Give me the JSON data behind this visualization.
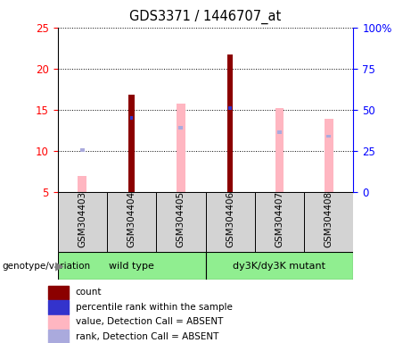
{
  "title": "GDS3371 / 1446707_at",
  "samples": [
    "GSM304403",
    "GSM304404",
    "GSM304405",
    "GSM304406",
    "GSM304407",
    "GSM304408"
  ],
  "count_values": [
    0,
    16.8,
    0,
    21.7,
    0,
    0
  ],
  "percentile_rank_values": [
    0,
    14.0,
    0,
    15.2,
    0,
    0
  ],
  "value_absent": [
    7.0,
    0,
    15.8,
    0,
    15.2,
    13.9
  ],
  "rank_absent": [
    10.1,
    0,
    12.8,
    0,
    12.3,
    11.8
  ],
  "ylim_left": [
    5,
    25
  ],
  "yticks_left": [
    5,
    10,
    15,
    20,
    25
  ],
  "yticks_right": [
    0,
    25,
    50,
    75,
    100
  ],
  "ytick_labels_right": [
    "0",
    "25",
    "50",
    "75",
    "100%"
  ],
  "color_count": "#8B0000",
  "color_rank": "#3333CC",
  "color_value_absent": "#FFB6C1",
  "color_rank_absent": "#AAAADD",
  "groups": [
    {
      "label": "wild type",
      "start": 0,
      "end": 2,
      "color": "#90EE90"
    },
    {
      "label": "dy3K/dy3K mutant",
      "start": 3,
      "end": 5,
      "color": "#90EE90"
    }
  ],
  "legend_items": [
    {
      "color": "#8B0000",
      "label": "count"
    },
    {
      "color": "#3333CC",
      "label": "percentile rank within the sample"
    },
    {
      "color": "#FFB6C1",
      "label": "value, Detection Call = ABSENT"
    },
    {
      "color": "#AAAADD",
      "label": "rank, Detection Call = ABSENT"
    }
  ]
}
